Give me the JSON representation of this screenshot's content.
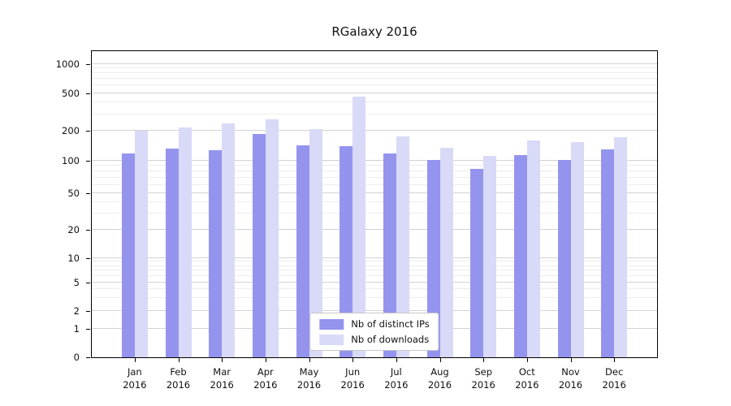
{
  "chart_data": {
    "type": "bar",
    "title": "RGalaxy 2016",
    "categories": [
      "Jan",
      "Feb",
      "Mar",
      "Apr",
      "May",
      "Jun",
      "Jul",
      "Aug",
      "Sep",
      "Oct",
      "Nov",
      "Dec"
    ],
    "x_year_label": "2016",
    "series": [
      {
        "name": "Nb of distinct IPs",
        "color": "#9494ee",
        "values": [
          118,
          132,
          128,
          185,
          142,
          141,
          120,
          103,
          85,
          114,
          103,
          130
        ]
      },
      {
        "name": "Nb of downloads",
        "color": "#d9d9f8",
        "values": [
          200,
          215,
          240,
          265,
          210,
          460,
          175,
          135,
          113,
          160,
          155,
          172
        ]
      }
    ],
    "yticks": [
      0,
      1,
      2,
      5,
      10,
      20,
      50,
      100,
      200,
      500,
      1000
    ],
    "yscale": "log",
    "ylim": [
      0,
      1000
    ],
    "grid": true,
    "legend_position": "bottom-center"
  }
}
